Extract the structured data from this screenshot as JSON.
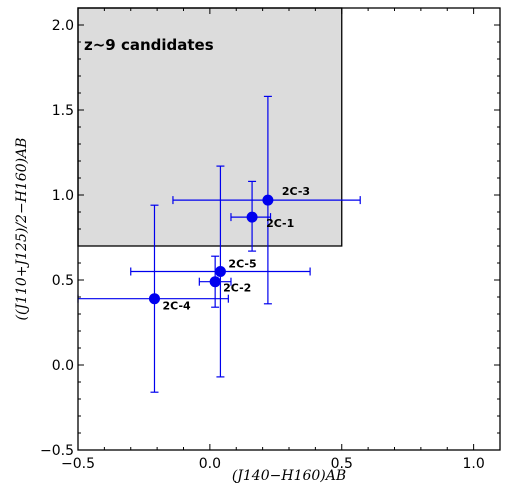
{
  "chart_data": {
    "type": "scatter",
    "title": "",
    "xlabel": "(J140−H160)AB",
    "ylabel": "((J110+J125)/2−H160)AB",
    "xlim": [
      -0.5,
      1.1
    ],
    "ylim": [
      -0.5,
      2.1
    ],
    "x_ticks": [
      "−0.5",
      "0.0",
      "0.5",
      "1.0"
    ],
    "x_tick_values": [
      -0.5,
      0.0,
      0.5,
      1.0
    ],
    "y_ticks": [
      "−0.5",
      "0.0",
      "0.5",
      "1.0",
      "1.5",
      "2.0"
    ],
    "y_tick_values": [
      -0.5,
      0.0,
      0.5,
      1.0,
      1.5,
      2.0
    ],
    "grid": false,
    "selection_region": {
      "label": "z~9 candidates",
      "x_min": -0.5,
      "x_max": 0.5,
      "y_min": 0.7,
      "y_max": 2.1,
      "fill": "#dcdcdc"
    },
    "series_color": "#0000ee",
    "points": [
      {
        "label": "2C-3",
        "x": 0.22,
        "y": 0.97,
        "x_err": [
          0.36,
          0.35
        ],
        "y_err": [
          0.61,
          0.61
        ]
      },
      {
        "label": "2C-1",
        "x": 0.16,
        "y": 0.87,
        "x_err": [
          0.08,
          0.07
        ],
        "y_err": [
          0.2,
          0.21
        ]
      },
      {
        "label": "2C-5",
        "x": 0.04,
        "y": 0.55,
        "x_err": [
          0.34,
          0.34
        ],
        "y_err": [
          0.62,
          0.62
        ]
      },
      {
        "label": "2C-2",
        "x": 0.02,
        "y": 0.49,
        "x_err": [
          0.06,
          0.06
        ],
        "y_err": [
          0.15,
          0.15
        ]
      },
      {
        "label": "2C-4",
        "x": -0.21,
        "y": 0.39,
        "x_err": [
          0.29,
          0.28
        ],
        "y_err": [
          0.55,
          0.55
        ]
      }
    ]
  }
}
